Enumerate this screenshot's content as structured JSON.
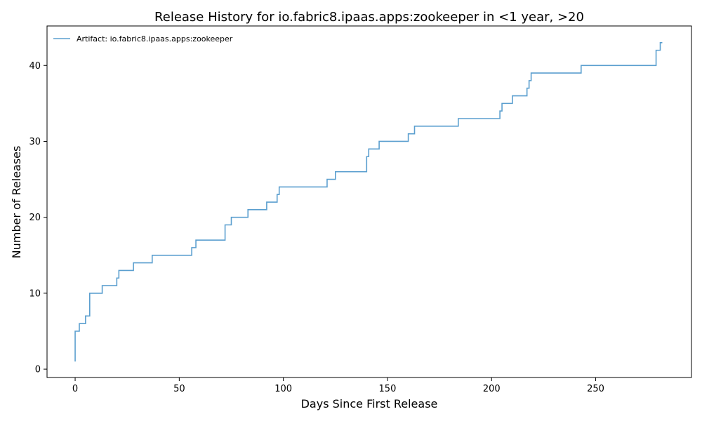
{
  "chart_data": {
    "type": "line",
    "title": "Release History for io.fabric8.ipaas.apps:zookeeper in <1 year, >20",
    "xlabel": "Days Since First Release",
    "ylabel": "Number of Releases",
    "xlim": [
      -13.5,
      296
    ],
    "ylim": [
      -1.1,
      45.2
    ],
    "xticks": [
      0,
      50,
      100,
      150,
      200,
      250
    ],
    "yticks": [
      0,
      10,
      20,
      30,
      40
    ],
    "grid": false,
    "legend_position": "top-left",
    "series": [
      {
        "name": "Artifact: io.fabric8.ipaas.apps:zookeeper",
        "color": "#5b9fcf",
        "step": "post",
        "x": [
          0,
          0,
          2,
          5,
          7,
          13,
          20,
          21,
          28,
          37,
          56,
          58,
          72,
          75,
          83,
          92,
          97,
          98,
          121,
          125,
          140,
          141,
          146,
          160,
          163,
          184,
          204,
          205,
          210,
          217,
          218,
          219,
          243,
          279,
          281,
          282
        ],
        "y": [
          1,
          5,
          6,
          7,
          10,
          11,
          12,
          13,
          14,
          15,
          16,
          17,
          19,
          20,
          21,
          22,
          23,
          24,
          25,
          26,
          28,
          29,
          30,
          31,
          32,
          33,
          34,
          35,
          36,
          37,
          38,
          39,
          40,
          42,
          43,
          43
        ]
      }
    ]
  }
}
